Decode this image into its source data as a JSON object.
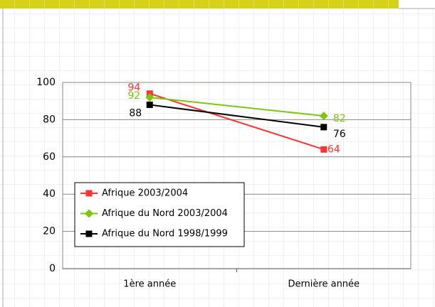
{
  "chart_data": {
    "type": "line",
    "categories": [
      "1ère année",
      "Dernière année"
    ],
    "series": [
      {
        "name": "Afrique 2003/2004",
        "color": "#ff3333",
        "marker": "square",
        "values": [
          94,
          64
        ]
      },
      {
        "name": "Afrique du Nord 2003/2004",
        "color": "#7ac70c",
        "marker": "diamond",
        "values": [
          92,
          82
        ]
      },
      {
        "name": "Afrique du Nord 1998/1999",
        "color": "#000000",
        "marker": "square",
        "values": [
          88,
          76
        ]
      }
    ],
    "ylim": [
      0,
      100
    ],
    "yticks": [
      0,
      20,
      40,
      60,
      80,
      100
    ],
    "grid": true,
    "legend": "lower left"
  }
}
